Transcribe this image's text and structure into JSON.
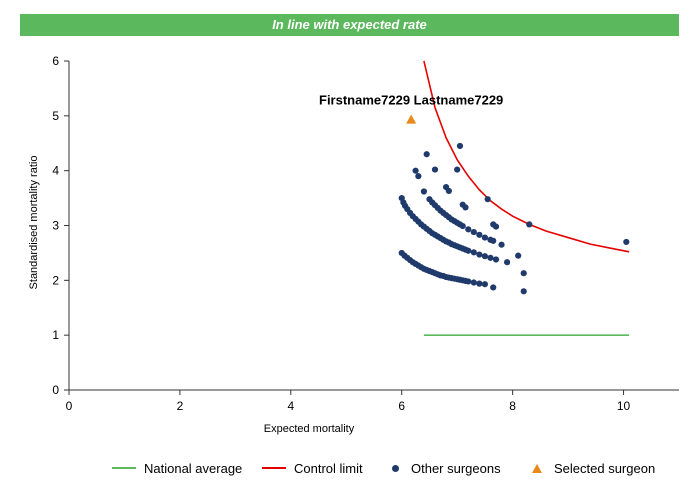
{
  "chart_data": {
    "type": "scatter",
    "title": "In line with expected rate",
    "xlabel": "Expected mortality",
    "ylabel": "Standardised mortality ratio",
    "xlim": [
      0,
      11
    ],
    "ylim": [
      0,
      6
    ],
    "x_ticks": [
      "0",
      "2",
      "4",
      "6",
      "8",
      "10"
    ],
    "y_ticks": [
      "0",
      "1",
      "2",
      "3",
      "4",
      "5",
      "6"
    ],
    "colors": {
      "banner": "#5cb85c",
      "national_average": "#5cb85c",
      "control_limit": "#e60000",
      "other_surgeons": "#1f3a6b",
      "selected_surgeon": "#e8891a"
    },
    "series": [
      {
        "name": "National average",
        "kind": "line",
        "x": [
          6.4,
          10.1
        ],
        "y": [
          1.0,
          1.0
        ]
      },
      {
        "name": "Control limit",
        "kind": "line",
        "x": [
          6.4,
          6.6,
          6.8,
          7.0,
          7.2,
          7.4,
          7.6,
          7.8,
          8.0,
          8.3,
          8.6,
          9.0,
          9.4,
          9.8,
          10.1
        ],
        "y": [
          6.0,
          5.15,
          4.6,
          4.2,
          3.9,
          3.65,
          3.45,
          3.3,
          3.17,
          3.02,
          2.9,
          2.78,
          2.66,
          2.58,
          2.52
        ]
      },
      {
        "name": "Other surgeons",
        "kind": "scatter",
        "points": [
          [
            6.0,
            2.5
          ],
          [
            6.05,
            2.45
          ],
          [
            6.1,
            2.41
          ],
          [
            6.15,
            2.37
          ],
          [
            6.2,
            2.33
          ],
          [
            6.25,
            2.3
          ],
          [
            6.3,
            2.27
          ],
          [
            6.35,
            2.24
          ],
          [
            6.4,
            2.21
          ],
          [
            6.45,
            2.19
          ],
          [
            6.5,
            2.17
          ],
          [
            6.55,
            2.15
          ],
          [
            6.6,
            2.13
          ],
          [
            6.65,
            2.11
          ],
          [
            6.7,
            2.09
          ],
          [
            6.75,
            2.08
          ],
          [
            6.8,
            2.06
          ],
          [
            6.85,
            2.05
          ],
          [
            6.9,
            2.04
          ],
          [
            6.95,
            2.03
          ],
          [
            7.0,
            2.02
          ],
          [
            7.05,
            2.01
          ],
          [
            7.1,
            2.0
          ],
          [
            7.15,
            1.99
          ],
          [
            7.2,
            1.98
          ],
          [
            7.3,
            1.96
          ],
          [
            7.4,
            1.94
          ],
          [
            7.5,
            1.93
          ],
          [
            7.65,
            1.87
          ],
          [
            8.2,
            1.8
          ],
          [
            6.0,
            3.5
          ],
          [
            6.03,
            3.42
          ],
          [
            6.06,
            3.36
          ],
          [
            6.1,
            3.3
          ],
          [
            6.15,
            3.23
          ],
          [
            6.2,
            3.17
          ],
          [
            6.25,
            3.12
          ],
          [
            6.3,
            3.07
          ],
          [
            6.35,
            3.02
          ],
          [
            6.4,
            2.98
          ],
          [
            6.45,
            2.94
          ],
          [
            6.5,
            2.9
          ],
          [
            6.55,
            2.86
          ],
          [
            6.6,
            2.83
          ],
          [
            6.65,
            2.8
          ],
          [
            6.7,
            2.77
          ],
          [
            6.75,
            2.74
          ],
          [
            6.8,
            2.71
          ],
          [
            6.85,
            2.69
          ],
          [
            6.9,
            2.66
          ],
          [
            6.95,
            2.64
          ],
          [
            7.0,
            2.62
          ],
          [
            7.05,
            2.6
          ],
          [
            7.1,
            2.58
          ],
          [
            7.15,
            2.56
          ],
          [
            7.2,
            2.54
          ],
          [
            7.3,
            2.51
          ],
          [
            7.4,
            2.47
          ],
          [
            7.5,
            2.44
          ],
          [
            7.6,
            2.41
          ],
          [
            7.7,
            2.38
          ],
          [
            7.9,
            2.33
          ],
          [
            8.2,
            2.13
          ],
          [
            6.25,
            4.0
          ],
          [
            6.3,
            3.9
          ],
          [
            6.4,
            3.62
          ],
          [
            6.5,
            3.48
          ],
          [
            6.55,
            3.42
          ],
          [
            6.6,
            3.37
          ],
          [
            6.65,
            3.32
          ],
          [
            6.7,
            3.27
          ],
          [
            6.75,
            3.23
          ],
          [
            6.8,
            3.19
          ],
          [
            6.85,
            3.15
          ],
          [
            6.9,
            3.11
          ],
          [
            6.95,
            3.08
          ],
          [
            7.0,
            3.05
          ],
          [
            7.05,
            3.02
          ],
          [
            7.1,
            2.99
          ],
          [
            7.2,
            2.93
          ],
          [
            7.3,
            2.88
          ],
          [
            7.4,
            2.83
          ],
          [
            7.5,
            2.78
          ],
          [
            7.6,
            2.74
          ],
          [
            7.65,
            2.72
          ],
          [
            7.8,
            2.65
          ],
          [
            8.1,
            2.45
          ],
          [
            6.45,
            4.3
          ],
          [
            6.6,
            4.02
          ],
          [
            6.8,
            3.7
          ],
          [
            6.85,
            3.63
          ],
          [
            7.0,
            4.02
          ],
          [
            7.05,
            4.45
          ],
          [
            7.1,
            3.38
          ],
          [
            7.15,
            3.33
          ],
          [
            7.55,
            3.48
          ],
          [
            7.65,
            3.02
          ],
          [
            7.7,
            2.98
          ],
          [
            8.3,
            3.02
          ],
          [
            10.05,
            2.7
          ]
        ]
      },
      {
        "name": "Selected surgeon",
        "kind": "scatter",
        "points": [
          [
            6.17,
            4.93
          ]
        ],
        "label": "Firstname7229 Lastname7229"
      }
    ],
    "legend": {
      "position": "bottom",
      "entries": [
        {
          "label": "National average",
          "marker": "line"
        },
        {
          "label": "Control limit",
          "marker": "line"
        },
        {
          "label": "Other surgeons",
          "marker": "dot"
        },
        {
          "label": "Selected surgeon",
          "marker": "triangle"
        }
      ]
    }
  }
}
